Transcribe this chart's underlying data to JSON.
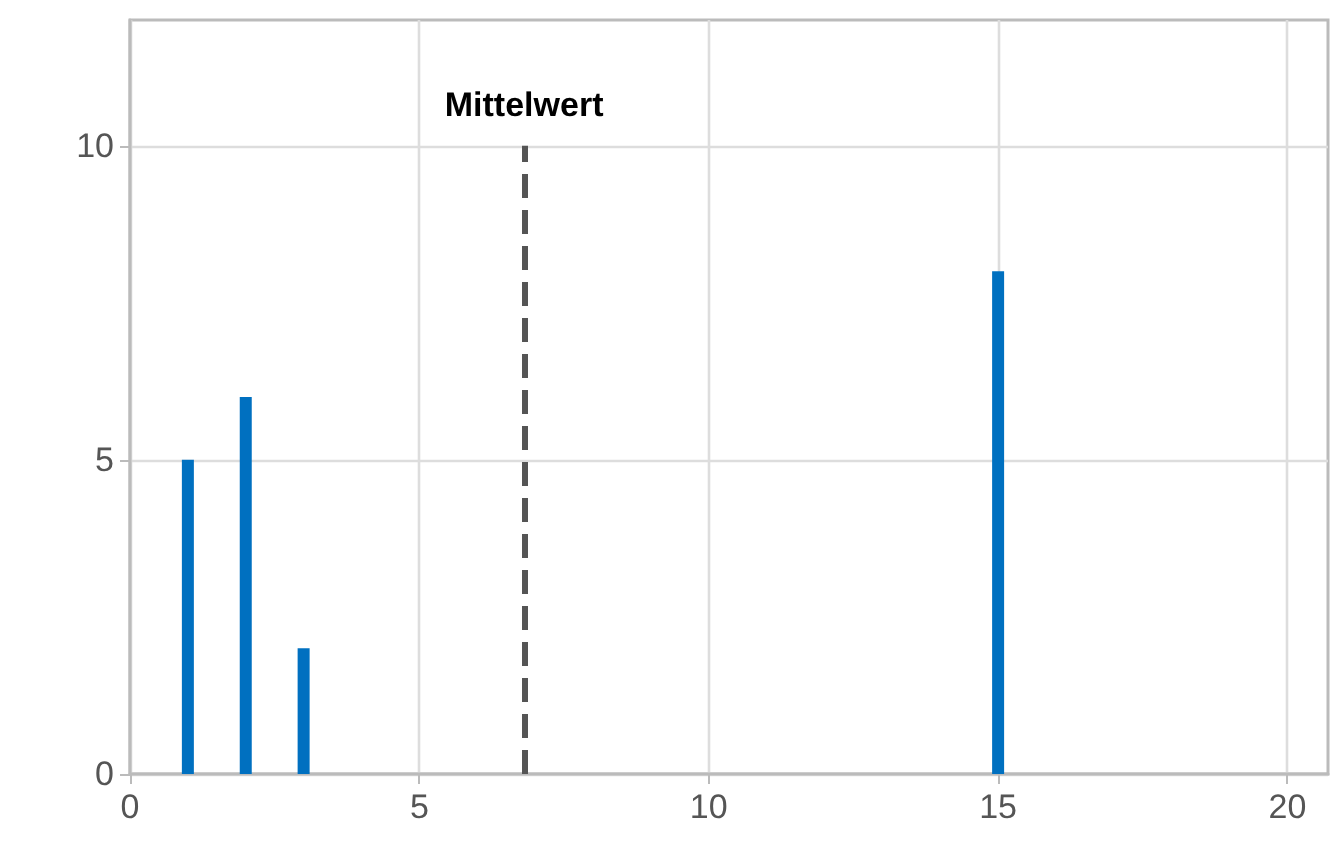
{
  "chart_data": {
    "type": "bar",
    "x": [
      1,
      2,
      3,
      15
    ],
    "series": [
      {
        "color": "#0070c0",
        "values": [
          5,
          6,
          2,
          8
        ]
      }
    ],
    "xlim": [
      0,
      20.7
    ],
    "xticks": [
      0,
      5,
      10,
      15,
      20
    ],
    "ylim": [
      0,
      12
    ],
    "yticks": [
      0,
      5,
      10
    ],
    "grid": true,
    "ref_lines": [
      {
        "axis": "x",
        "value": 6.81,
        "label": "Mittelwert",
        "line_style": "dashed",
        "color": "#555555"
      }
    ]
  }
}
